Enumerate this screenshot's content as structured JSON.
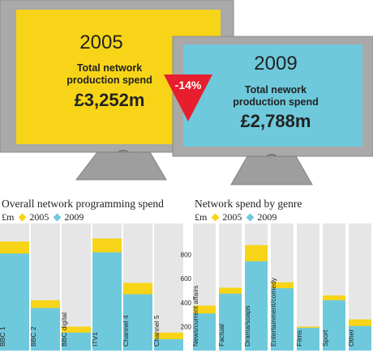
{
  "tv_2005": {
    "year": "2005",
    "caption_line1": "Total network",
    "caption_line2": "production spend",
    "value": "£3,252m"
  },
  "tv_2009": {
    "year": "2009",
    "caption_line1": "Total nework",
    "caption_line2": "production spend",
    "value": "£2,788m"
  },
  "change_badge": "-14%",
  "colors": {
    "c2005": "#f7d417",
    "c2009": "#6ec9dc",
    "screen_2005": "#f7d417",
    "screen_2009": "#6ec9dc",
    "badge": "#e61e2d",
    "panel": "#e6e6e6",
    "tv_body": "#a9a9a9"
  },
  "left_chart_header": {
    "title": "Overall network programming spend",
    "unit": "£m",
    "legend_2005": "2005",
    "legend_2009": "2009"
  },
  "right_chart_header": {
    "title": "Network spend by genre",
    "unit": "£m",
    "legend_2005": "2005",
    "legend_2009": "2009"
  },
  "chart_data": [
    {
      "type": "bar",
      "title": "Overall network programming spend",
      "ylabel": "£m",
      "categories": [
        "BBC 1",
        "BBC 2",
        "BBC digital",
        "ITV1",
        "Channel 4",
        "Channel 5"
      ],
      "ylim": [
        0,
        1000
      ],
      "series": [
        {
          "name": "2005",
          "values": [
            910,
            420,
            200,
            935,
            565,
            150
          ]
        },
        {
          "name": "2009",
          "values": [
            810,
            355,
            150,
            820,
            470,
            95
          ]
        }
      ]
    },
    {
      "type": "bar",
      "title": "Network spend by genre",
      "ylabel": "£m",
      "categories": [
        "News/current affairs",
        "Factual",
        "Drama/soaps",
        "Entertainment/comedy",
        "Films",
        "Sport",
        "Other"
      ],
      "y_ticks": [
        200,
        400,
        600,
        800
      ],
      "ylim": [
        0,
        1000
      ],
      "series": [
        {
          "name": "2005",
          "values": [
            375,
            525,
            880,
            570,
            200,
            460,
            260
          ]
        },
        {
          "name": "2009",
          "values": [
            310,
            475,
            745,
            520,
            190,
            420,
            205
          ]
        }
      ]
    }
  ]
}
